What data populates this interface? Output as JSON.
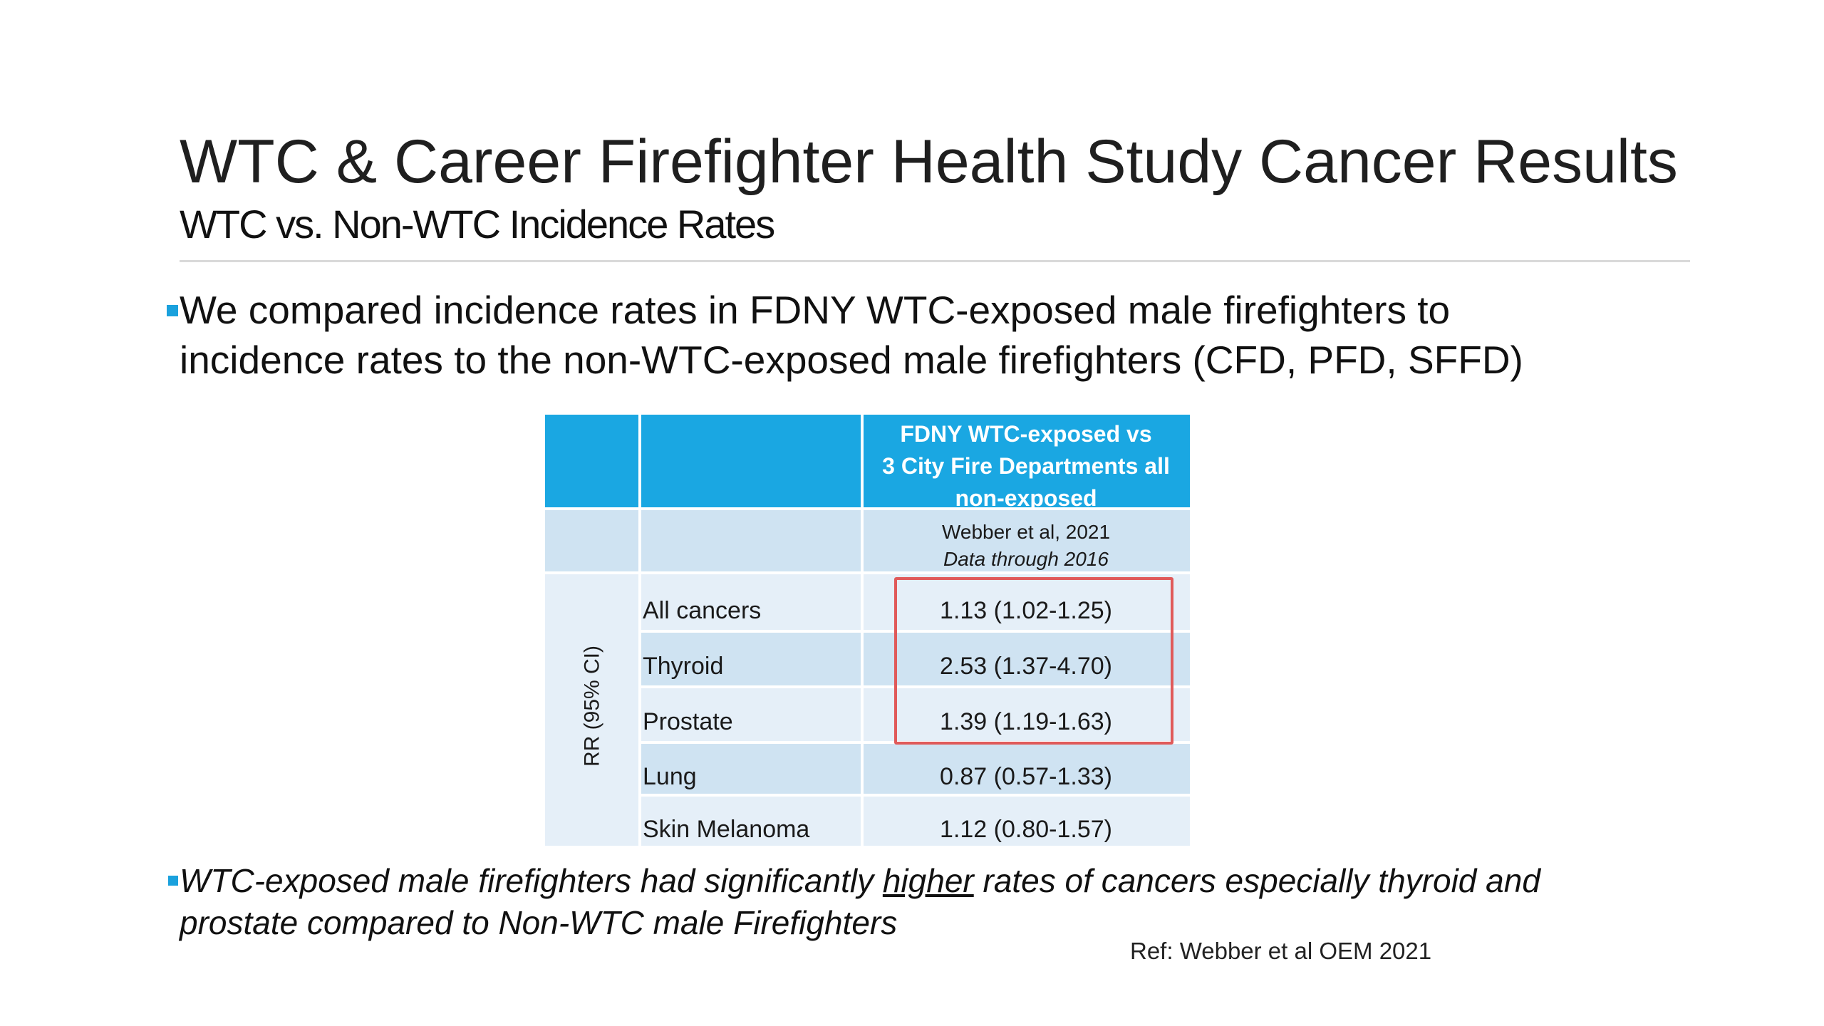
{
  "slide": {
    "title": "WTC & Career Firefighter Health Study Cancer Results",
    "subtitle": "WTC vs. Non-WTC Incidence Rates",
    "bullet1_line1": "We compared incidence rates in FDNY WTC-exposed male firefighters to",
    "bullet1_line2": "incidence rates to the non-WTC-exposed male firefighters (CFD, PFD, SFFD)",
    "bullet2_before": "WTC-exposed male firefighters had significantly ",
    "bullet2_emphasis": "higher",
    "bullet2_after": " rates of cancers especially thyroid and",
    "bullet2_line2": "prostate compared to Non-WTC male Firefighters",
    "reference": "Ref: Webber et al OEM 2021",
    "accent_color": "#1aa7e2",
    "highlight_color": "#e05a5a"
  },
  "table": {
    "header_line1": "FDNY WTC-exposed vs",
    "header_line2": "3 City Fire Departments all",
    "header_line3": "non-exposed",
    "source_line1": "Webber et al, 2021",
    "source_line2": "Data through 2016",
    "row_group_label": "RR (95% CI)",
    "rows": [
      {
        "label": "All cancers",
        "value": "1.13 (1.02-1.25)",
        "highlighted": true
      },
      {
        "label": "Thyroid",
        "value": "2.53 (1.37-4.70)",
        "highlighted": true
      },
      {
        "label": "Prostate",
        "value": "1.39 (1.19-1.63)",
        "highlighted": true
      },
      {
        "label": "Lung",
        "value": "0.87 (0.57-1.33)",
        "highlighted": false
      },
      {
        "label": "Skin Melanoma",
        "value": "1.12 (0.80-1.57)",
        "highlighted": false
      }
    ]
  }
}
